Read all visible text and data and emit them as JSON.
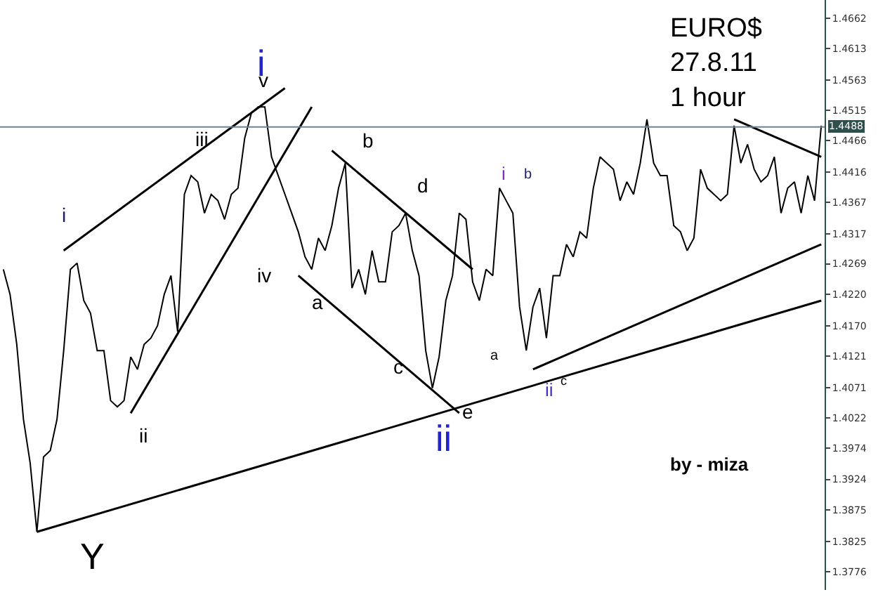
{
  "chart_data": {
    "type": "line",
    "title": "EURO$\n27.8.11\n1 hour",
    "categories": [
      null,
      null,
      null,
      null,
      null,
      null,
      null,
      null,
      null,
      null,
      null,
      null,
      null,
      null,
      null,
      null,
      null,
      null,
      null,
      null,
      null,
      null,
      null,
      null,
      null,
      null,
      null,
      null,
      null,
      null,
      null,
      null,
      null,
      null,
      null,
      null,
      null,
      null,
      null,
      null,
      null,
      null,
      null,
      null,
      null,
      null,
      null,
      null,
      null,
      null,
      null,
      null,
      null,
      null,
      null,
      null,
      null,
      null,
      null,
      null,
      null,
      null,
      null,
      null,
      null,
      null,
      null,
      null,
      null,
      null,
      null,
      null,
      null,
      null,
      null,
      null,
      null,
      null,
      null,
      null,
      null,
      null,
      null,
      null,
      null,
      null,
      null,
      null,
      null,
      null,
      null,
      null,
      null,
      null,
      null,
      null,
      null,
      null,
      null,
      null,
      null,
      null,
      null,
      null,
      null,
      null,
      null,
      null,
      null,
      null,
      null,
      null,
      null,
      null,
      null,
      null,
      null,
      null,
      null,
      null,
      null,
      null,
      null
    ],
    "series": [
      {
        "color": "#000000",
        "values": [
          1.426,
          1.422,
          1.414,
          1.402,
          1.395,
          1.384,
          1.396,
          1.397,
          1.402,
          1.413,
          1.426,
          1.427,
          1.421,
          1.419,
          1.413,
          1.413,
          1.405,
          1.404,
          1.405,
          1.412,
          1.41,
          1.414,
          1.415,
          1.417,
          1.422,
          1.425,
          1.416,
          1.438,
          1.441,
          1.44,
          1.435,
          1.438,
          1.437,
          1.434,
          1.438,
          1.439,
          1.447,
          1.451,
          1.452,
          1.452,
          1.444,
          1.441,
          1.438,
          1.435,
          1.432,
          1.428,
          1.426,
          1.431,
          1.429,
          1.433,
          1.439,
          1.443,
          1.423,
          1.426,
          1.422,
          1.429,
          1.424,
          1.424,
          1.432,
          1.433,
          1.435,
          1.429,
          1.425,
          1.413,
          1.407,
          1.412,
          1.421,
          1.425,
          1.435,
          1.434,
          1.424,
          1.421,
          1.426,
          1.425,
          1.439,
          1.437,
          1.435,
          1.42,
          1.413,
          1.42,
          1.423,
          1.415,
          1.425,
          1.425,
          1.43,
          1.428,
          1.432,
          1.431,
          1.439,
          1.444,
          1.443,
          1.442,
          1.437,
          1.44,
          1.438,
          1.443,
          1.45,
          1.443,
          1.441,
          1.441,
          1.433,
          1.432,
          1.429,
          1.431,
          1.442,
          1.439,
          1.438,
          1.437,
          1.438,
          1.449,
          1.443,
          1.446,
          1.442,
          1.44,
          1.441,
          1.444,
          1.435,
          1.439,
          1.44,
          1.435,
          1.441,
          1.437,
          1.449
        ]
      },
      {
        "color": "#000000",
        "type": "line",
        "values": [
          null,
          null,
          null,
          null,
          null,
          1.384,
          null,
          null,
          null,
          null,
          null,
          null,
          null,
          null,
          null,
          null,
          null,
          null,
          null,
          null,
          null,
          null,
          null,
          null,
          null,
          null,
          null,
          null,
          null,
          null,
          null,
          null,
          null,
          null,
          null,
          null,
          null,
          null,
          null,
          null,
          null,
          null,
          null,
          null,
          null,
          null,
          null,
          null,
          null,
          null,
          null,
          null,
          null,
          null,
          null,
          null,
          null,
          null,
          null,
          null,
          null,
          null,
          null,
          null,
          null,
          null,
          null,
          null,
          null,
          null,
          null,
          null,
          null,
          null,
          null,
          null,
          null,
          null,
          null,
          null,
          null,
          null,
          null,
          null,
          null,
          null,
          null,
          null,
          null,
          null,
          null,
          null,
          null,
          null,
          null,
          null,
          null,
          null,
          null,
          null,
          null,
          null,
          null,
          null,
          null,
          null,
          null,
          null,
          null,
          null,
          null,
          null,
          null,
          null,
          null,
          null,
          null,
          null,
          null,
          null,
          null,
          null,
          1.421
        ]
      },
      {
        "color": "#000000",
        "type": "line",
        "values": [
          null,
          null,
          null,
          null,
          null,
          null,
          null,
          null,
          null,
          null,
          null,
          null,
          null,
          null,
          null,
          null,
          null,
          null,
          null,
          null,
          null,
          null,
          null,
          null,
          null,
          null,
          null,
          null,
          null,
          null,
          null,
          null,
          null,
          null,
          null,
          null,
          null,
          null,
          null,
          null,
          null,
          null,
          null,
          null,
          null,
          null,
          null,
          null,
          null,
          null,
          null,
          null,
          null,
          null,
          null,
          null,
          null,
          null,
          null,
          null,
          null,
          null,
          null,
          null,
          null,
          null,
          null,
          null,
          null,
          null,
          null,
          null,
          null,
          null,
          null,
          null,
          null,
          null,
          null,
          1.41,
          null,
          null,
          null,
          null,
          null,
          null,
          null,
          null,
          null,
          null,
          null,
          null,
          null,
          null,
          null,
          null,
          null,
          null,
          null,
          null,
          null,
          null,
          null,
          null,
          null,
          null,
          null,
          null,
          null,
          null,
          null,
          null,
          null,
          null,
          null,
          null,
          null,
          null,
          null,
          null,
          null,
          null,
          1.43
        ]
      },
      {
        "color": "#000000",
        "type": "line",
        "values": [
          null,
          null,
          null,
          null,
          null,
          null,
          null,
          null,
          null,
          1.429,
          null,
          null,
          null,
          null,
          null,
          null,
          null,
          null,
          null,
          null,
          null,
          null,
          null,
          null,
          null,
          null,
          null,
          null,
          null,
          null,
          null,
          null,
          null,
          null,
          null,
          null,
          null,
          null,
          null,
          null,
          null,
          null,
          1.455,
          null,
          null,
          null,
          null,
          null,
          null,
          null,
          null,
          null,
          null,
          null,
          null,
          null,
          null,
          null,
          null,
          null,
          null,
          null,
          null,
          null,
          null,
          null,
          null,
          null,
          null,
          null,
          null,
          null,
          null,
          null,
          null,
          null,
          null,
          null,
          null,
          null,
          null,
          null,
          null,
          null,
          null,
          null,
          null,
          null,
          null,
          null,
          null,
          null,
          null,
          null,
          null,
          null,
          null,
          null,
          null,
          null,
          null,
          null,
          null,
          null,
          null,
          null,
          null,
          null,
          null,
          null,
          null,
          null,
          null,
          null,
          null,
          null,
          null,
          null,
          null,
          null,
          null,
          null,
          null
        ]
      },
      {
        "color": "#000000",
        "type": "line",
        "values": [
          null,
          null,
          null,
          null,
          null,
          null,
          null,
          null,
          null,
          null,
          null,
          null,
          null,
          null,
          null,
          null,
          null,
          null,
          null,
          1.403,
          null,
          null,
          null,
          null,
          null,
          null,
          null,
          null,
          null,
          null,
          null,
          null,
          null,
          null,
          null,
          null,
          null,
          null,
          null,
          null,
          null,
          null,
          null,
          null,
          null,
          null,
          1.452,
          null,
          null,
          null,
          null,
          null,
          null,
          null,
          null,
          null,
          null,
          null,
          null,
          null,
          null,
          null,
          null,
          null,
          null,
          null,
          null,
          null,
          null,
          null,
          null,
          null,
          null,
          null,
          null,
          null,
          null,
          null,
          null,
          null,
          null,
          null,
          null,
          null,
          null,
          null,
          null,
          null,
          null,
          null,
          null,
          null,
          null,
          null,
          null,
          null,
          null,
          null,
          null,
          null,
          null,
          null,
          null,
          null,
          null,
          null,
          null,
          null,
          null,
          null,
          null,
          null,
          null,
          null,
          null,
          null,
          null,
          null,
          null,
          null,
          null,
          null,
          null
        ]
      },
      {
        "color": "#000000",
        "type": "line",
        "values": [
          null,
          null,
          null,
          null,
          null,
          null,
          null,
          null,
          null,
          null,
          null,
          null,
          null,
          null,
          null,
          null,
          null,
          null,
          null,
          null,
          null,
          null,
          null,
          null,
          null,
          null,
          null,
          null,
          null,
          null,
          null,
          null,
          null,
          null,
          null,
          null,
          null,
          null,
          null,
          null,
          null,
          null,
          null,
          null,
          null,
          null,
          null,
          null,
          null,
          1.445,
          null,
          null,
          null,
          null,
          null,
          null,
          null,
          null,
          null,
          null,
          null,
          null,
          null,
          null,
          null,
          null,
          null,
          null,
          null,
          null,
          1.426,
          null,
          null,
          null,
          null,
          null,
          null,
          null,
          null,
          null,
          null,
          null,
          null,
          null,
          null,
          null,
          null,
          null,
          null,
          null,
          null,
          null,
          null,
          null,
          null,
          null,
          null,
          null,
          null,
          null,
          null,
          null,
          null,
          null,
          null,
          null,
          null,
          null,
          null,
          null,
          null,
          null,
          null,
          null,
          null,
          null,
          null,
          null,
          null,
          null,
          null,
          null,
          null
        ]
      },
      {
        "color": "#000000",
        "type": "line",
        "values": [
          null,
          null,
          null,
          null,
          null,
          null,
          null,
          null,
          null,
          null,
          null,
          null,
          null,
          null,
          null,
          null,
          null,
          null,
          null,
          null,
          null,
          null,
          null,
          null,
          null,
          null,
          null,
          null,
          null,
          null,
          null,
          null,
          null,
          null,
          null,
          null,
          null,
          null,
          null,
          null,
          null,
          null,
          null,
          null,
          1.425,
          null,
          null,
          null,
          null,
          null,
          null,
          null,
          null,
          null,
          null,
          null,
          null,
          null,
          null,
          null,
          null,
          null,
          null,
          null,
          null,
          null,
          null,
          null,
          1.403,
          null,
          null,
          null,
          null,
          null,
          null,
          null,
          null,
          null,
          null,
          null,
          null,
          null,
          null,
          null,
          null,
          null,
          null,
          null,
          null,
          null,
          null,
          null,
          null,
          null,
          null,
          null,
          null,
          null,
          null,
          null,
          null,
          null,
          null,
          null,
          null,
          null,
          null,
          null,
          null,
          null,
          null,
          null,
          null,
          null,
          null,
          null,
          null,
          null,
          null,
          null,
          null,
          null,
          null
        ]
      },
      {
        "color": "#000000",
        "type": "line",
        "values": [
          null,
          null,
          null,
          null,
          null,
          null,
          null,
          null,
          null,
          null,
          null,
          null,
          null,
          null,
          null,
          null,
          null,
          null,
          null,
          null,
          null,
          null,
          null,
          null,
          null,
          null,
          null,
          null,
          null,
          null,
          null,
          null,
          null,
          null,
          null,
          null,
          null,
          null,
          null,
          null,
          null,
          null,
          null,
          null,
          null,
          null,
          null,
          null,
          null,
          null,
          null,
          null,
          null,
          null,
          null,
          null,
          null,
          null,
          null,
          null,
          null,
          null,
          null,
          null,
          null,
          null,
          null,
          null,
          null,
          null,
          null,
          null,
          null,
          null,
          null,
          null,
          null,
          null,
          null,
          null,
          null,
          null,
          null,
          null,
          null,
          null,
          null,
          null,
          null,
          null,
          null,
          null,
          null,
          null,
          null,
          null,
          null,
          null,
          null,
          null,
          null,
          null,
          null,
          null,
          null,
          null,
          null,
          null,
          null,
          1.45,
          null,
          null,
          null,
          null,
          null,
          null,
          null,
          null,
          null,
          null,
          null,
          null,
          1.444
        ]
      }
    ],
    "ylim": [
      1.3747,
      1.4691
    ],
    "yticks": [
      1.4662,
      1.4613,
      1.4563,
      1.4515,
      1.4466,
      1.4416,
      1.4367,
      1.4317,
      1.4269,
      {
        "value": 1.422,
        "label": "1.4220"
      },
      {
        "value": 1.417,
        "label": "1.4170"
      },
      1.4121,
      1.4071,
      1.4022,
      1.3974,
      1.3924,
      1.3875,
      1.3825,
      1.3776
    ],
    "ref_lines": [
      {
        "axis": "y",
        "value": 1.4488,
        "label": "1.4488",
        "color": "#708090"
      }
    ],
    "annotations": [
      "i",
      "v",
      "iii",
      "i",
      "iv",
      "ii",
      "b",
      "d",
      "a",
      "c",
      "e",
      "ii",
      "i",
      "b",
      "a",
      "ii",
      "c",
      "Y",
      "by - miza"
    ],
    "marker": "none",
    "line_style": "solid"
  }
}
